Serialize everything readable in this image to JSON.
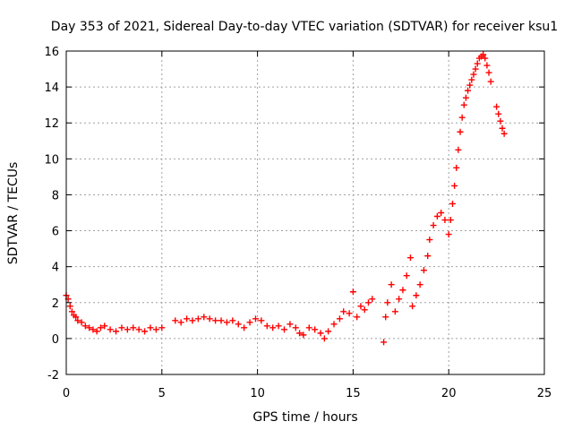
{
  "chart_data": {
    "type": "scatter",
    "title": "Day 353 of 2021, Sidereal Day-to-day VTEC variation (SDTVAR) for receiver ksu1",
    "xlabel": "GPS time / hours",
    "ylabel": "SDTVAR / TECUs",
    "xlim": [
      0,
      25
    ],
    "ylim": [
      -2,
      16
    ],
    "xticks": [
      0,
      5,
      10,
      15,
      20,
      25
    ],
    "yticks": [
      -2,
      0,
      2,
      4,
      6,
      8,
      10,
      12,
      14,
      16
    ],
    "grid": true,
    "marker": "+",
    "color": "#ff0000",
    "series": [
      {
        "name": "ksu1",
        "points": [
          [
            0.0,
            2.4
          ],
          [
            0.1,
            2.2
          ],
          [
            0.2,
            1.8
          ],
          [
            0.3,
            1.5
          ],
          [
            0.4,
            1.3
          ],
          [
            0.5,
            1.2
          ],
          [
            0.6,
            1.0
          ],
          [
            0.8,
            0.9
          ],
          [
            1.0,
            0.7
          ],
          [
            1.2,
            0.6
          ],
          [
            1.4,
            0.5
          ],
          [
            1.6,
            0.4
          ],
          [
            1.8,
            0.6
          ],
          [
            2.0,
            0.7
          ],
          [
            2.3,
            0.5
          ],
          [
            2.6,
            0.4
          ],
          [
            2.9,
            0.6
          ],
          [
            3.2,
            0.5
          ],
          [
            3.5,
            0.6
          ],
          [
            3.8,
            0.5
          ],
          [
            4.1,
            0.4
          ],
          [
            4.4,
            0.6
          ],
          [
            4.7,
            0.5
          ],
          [
            5.0,
            0.6
          ],
          [
            5.7,
            1.0
          ],
          [
            6.0,
            0.9
          ],
          [
            6.3,
            1.1
          ],
          [
            6.6,
            1.0
          ],
          [
            6.9,
            1.1
          ],
          [
            7.2,
            1.2
          ],
          [
            7.5,
            1.1
          ],
          [
            7.8,
            1.0
          ],
          [
            8.1,
            1.0
          ],
          [
            8.4,
            0.9
          ],
          [
            8.7,
            1.0
          ],
          [
            9.0,
            0.8
          ],
          [
            9.3,
            0.6
          ],
          [
            9.6,
            0.9
          ],
          [
            9.9,
            1.1
          ],
          [
            10.2,
            1.0
          ],
          [
            10.5,
            0.7
          ],
          [
            10.8,
            0.6
          ],
          [
            11.1,
            0.7
          ],
          [
            11.4,
            0.5
          ],
          [
            11.7,
            0.8
          ],
          [
            12.0,
            0.6
          ],
          [
            12.2,
            0.3
          ],
          [
            12.4,
            0.2
          ],
          [
            12.7,
            0.6
          ],
          [
            13.0,
            0.5
          ],
          [
            13.3,
            0.3
          ],
          [
            13.5,
            0.0
          ],
          [
            13.7,
            0.4
          ],
          [
            14.0,
            0.8
          ],
          [
            14.3,
            1.1
          ],
          [
            14.5,
            1.5
          ],
          [
            14.8,
            1.4
          ],
          [
            15.0,
            2.6
          ],
          [
            15.2,
            1.2
          ],
          [
            15.4,
            1.8
          ],
          [
            15.6,
            1.6
          ],
          [
            15.8,
            2.0
          ],
          [
            16.0,
            2.2
          ],
          [
            16.6,
            -0.2
          ],
          [
            16.7,
            1.2
          ],
          [
            16.8,
            2.0
          ],
          [
            17.0,
            3.0
          ],
          [
            17.2,
            1.5
          ],
          [
            17.4,
            2.2
          ],
          [
            17.6,
            2.7
          ],
          [
            17.8,
            3.5
          ],
          [
            18.0,
            4.5
          ],
          [
            18.1,
            1.8
          ],
          [
            18.3,
            2.4
          ],
          [
            18.5,
            3.0
          ],
          [
            18.7,
            3.8
          ],
          [
            18.9,
            4.6
          ],
          [
            19.0,
            5.5
          ],
          [
            19.2,
            6.3
          ],
          [
            19.4,
            6.8
          ],
          [
            19.6,
            7.0
          ],
          [
            19.8,
            6.6
          ],
          [
            20.0,
            5.8
          ],
          [
            20.1,
            6.6
          ],
          [
            20.2,
            7.5
          ],
          [
            20.3,
            8.5
          ],
          [
            20.4,
            9.5
          ],
          [
            20.5,
            10.5
          ],
          [
            20.6,
            11.5
          ],
          [
            20.7,
            12.3
          ],
          [
            20.8,
            13.0
          ],
          [
            20.9,
            13.4
          ],
          [
            21.0,
            13.8
          ],
          [
            21.1,
            14.1
          ],
          [
            21.2,
            14.4
          ],
          [
            21.3,
            14.7
          ],
          [
            21.4,
            15.0
          ],
          [
            21.5,
            15.3
          ],
          [
            21.6,
            15.6
          ],
          [
            21.7,
            15.7
          ],
          [
            21.8,
            15.8
          ],
          [
            21.9,
            15.6
          ],
          [
            22.0,
            15.2
          ],
          [
            22.1,
            14.8
          ],
          [
            22.2,
            14.3
          ],
          [
            22.5,
            12.9
          ],
          [
            22.6,
            12.5
          ],
          [
            22.7,
            12.1
          ],
          [
            22.8,
            11.7
          ],
          [
            22.9,
            11.4
          ]
        ]
      }
    ]
  }
}
